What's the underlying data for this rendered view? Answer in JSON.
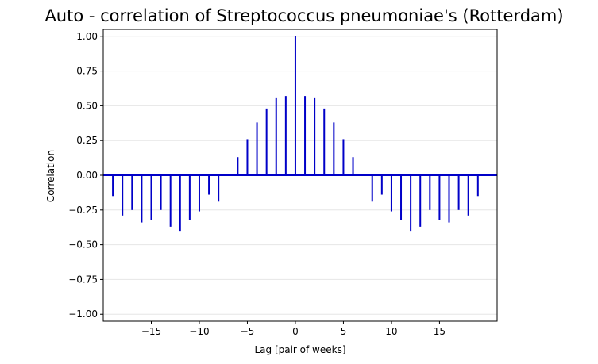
{
  "chart_data": {
    "type": "bar",
    "title": "Auto - correlation of Streptococcus pneumoniae's (Rotterdam)",
    "xlabel": "Lag [pair of weeks]",
    "ylabel": "Correlation",
    "xlim": [
      -20,
      21
    ],
    "ylim": [
      -1.05,
      1.05
    ],
    "x_ticks": [
      -15,
      -10,
      -5,
      0,
      5,
      10,
      15
    ],
    "y_ticks": [
      -1.0,
      -0.75,
      -0.5,
      -0.25,
      0.0,
      0.25,
      0.5,
      0.75,
      1.0
    ],
    "y_tick_labels": [
      "−1.00",
      "−0.75",
      "−0.50",
      "−0.25",
      "0.00",
      "0.25",
      "0.50",
      "0.75",
      "1.00"
    ],
    "x_tick_labels": [
      "−15",
      "−10",
      "−5",
      "0",
      "5",
      "10",
      "15"
    ],
    "grid": "horizontal",
    "colors": {
      "bars": "#0000c8",
      "baseline": "#0000c8",
      "grid": "#e6e6e6"
    },
    "lags": [
      -19,
      -18,
      -17,
      -16,
      -15,
      -14,
      -13,
      -12,
      -11,
      -10,
      -9,
      -8,
      -7,
      -6,
      -5,
      -4,
      -3,
      -2,
      -1,
      0,
      1,
      2,
      3,
      4,
      5,
      6,
      7,
      8,
      9,
      10,
      11,
      12,
      13,
      14,
      15,
      16,
      17,
      18,
      19
    ],
    "values": [
      -0.15,
      -0.29,
      -0.25,
      -0.34,
      -0.32,
      -0.25,
      -0.37,
      -0.4,
      -0.32,
      -0.26,
      -0.14,
      -0.19,
      0.01,
      0.13,
      0.26,
      0.38,
      0.48,
      0.56,
      0.57,
      1.0,
      0.57,
      0.56,
      0.48,
      0.38,
      0.26,
      0.13,
      0.01,
      -0.19,
      -0.14,
      -0.26,
      -0.32,
      -0.4,
      -0.37,
      -0.25,
      -0.32,
      -0.34,
      -0.25,
      -0.29,
      -0.15
    ]
  }
}
